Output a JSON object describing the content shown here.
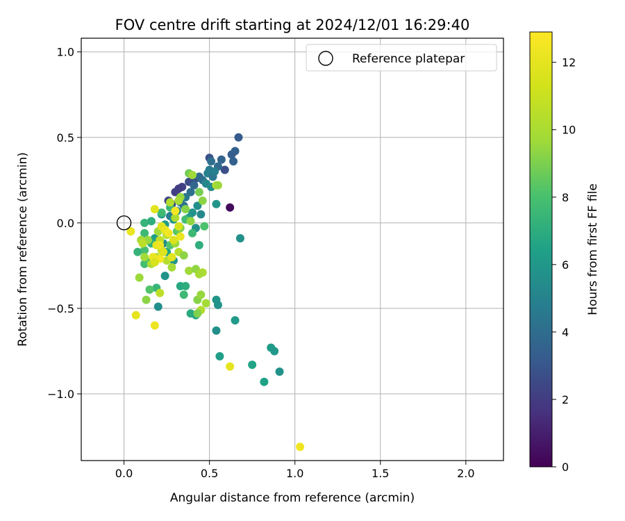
{
  "chart_data": {
    "type": "scatter",
    "title": "FOV centre drift starting at 2024/12/01 16:29:40",
    "xlabel": "Angular distance from reference (arcmin)",
    "ylabel": "Rotation from reference (arcmin)",
    "xlim": [
      -0.25,
      2.22
    ],
    "ylim": [
      -1.39,
      1.08
    ],
    "xticks": [
      0.0,
      0.5,
      1.0,
      1.5,
      2.0
    ],
    "xtick_labels": [
      "0.0",
      "0.5",
      "1.0",
      "1.5",
      "2.0"
    ],
    "yticks": [
      -1.0,
      -0.5,
      0.0,
      0.5,
      1.0
    ],
    "ytick_labels": [
      "−1.0",
      "−0.5",
      "0.0",
      "0.5",
      "1.0"
    ],
    "grid": true,
    "legend": {
      "placement": "upper right",
      "entries": [
        {
          "label": "Reference platepar",
          "marker": "open-circle",
          "x": 0.0,
          "y": 0.0
        }
      ]
    },
    "colorbar": {
      "label": "Hours from first FF file",
      "colormap": "viridis",
      "range": [
        0,
        12.9
      ],
      "ticks": [
        0,
        2,
        4,
        6,
        8,
        10,
        12
      ],
      "tick_labels": [
        "0",
        "2",
        "4",
        "6",
        "8",
        "10",
        "12"
      ]
    },
    "points": [
      {
        "x": 0.62,
        "y": 0.09,
        "h": 0.3
      },
      {
        "x": 0.34,
        "y": 0.21,
        "h": 2.2
      },
      {
        "x": 0.32,
        "y": 0.2,
        "h": 2.0
      },
      {
        "x": 0.38,
        "y": 0.24,
        "h": 2.6
      },
      {
        "x": 0.42,
        "y": 0.26,
        "h": 2.8
      },
      {
        "x": 0.26,
        "y": 0.13,
        "h": 2.3
      },
      {
        "x": 0.28,
        "y": 0.11,
        "h": 2.5
      },
      {
        "x": 0.3,
        "y": 0.18,
        "h": 2.1
      },
      {
        "x": 0.5,
        "y": 0.38,
        "h": 2.8
      },
      {
        "x": 0.59,
        "y": 0.31,
        "h": 2.7
      },
      {
        "x": 0.67,
        "y": 0.5,
        "h": 3.2
      },
      {
        "x": 0.65,
        "y": 0.42,
        "h": 3.4
      },
      {
        "x": 0.64,
        "y": 0.36,
        "h": 3.5
      },
      {
        "x": 0.63,
        "y": 0.4,
        "h": 3.3
      },
      {
        "x": 0.57,
        "y": 0.37,
        "h": 3.6
      },
      {
        "x": 0.55,
        "y": 0.33,
        "h": 3.9
      },
      {
        "x": 0.51,
        "y": 0.36,
        "h": 4.1
      },
      {
        "x": 0.5,
        "y": 0.31,
        "h": 4.6
      },
      {
        "x": 0.49,
        "y": 0.29,
        "h": 4.9
      },
      {
        "x": 0.52,
        "y": 0.27,
        "h": 4.4
      },
      {
        "x": 0.53,
        "y": 0.3,
        "h": 4.8
      },
      {
        "x": 0.46,
        "y": 0.25,
        "h": 4.3
      },
      {
        "x": 0.44,
        "y": 0.27,
        "h": 3.9
      },
      {
        "x": 0.41,
        "y": 0.22,
        "h": 3.7
      },
      {
        "x": 0.39,
        "y": 0.18,
        "h": 4.1
      },
      {
        "x": 0.36,
        "y": 0.15,
        "h": 4.5
      },
      {
        "x": 0.33,
        "y": 0.12,
        "h": 4.6
      },
      {
        "x": 0.35,
        "y": 0.1,
        "h": 4.2
      },
      {
        "x": 0.27,
        "y": 0.04,
        "h": 4.8
      },
      {
        "x": 0.31,
        "y": 0.07,
        "h": 5.1
      },
      {
        "x": 0.48,
        "y": 0.23,
        "h": 5.2
      },
      {
        "x": 0.51,
        "y": 0.21,
        "h": 5.5
      },
      {
        "x": 0.54,
        "y": 0.11,
        "h": 5.9
      },
      {
        "x": 0.43,
        "y": 0.1,
        "h": 5.6
      },
      {
        "x": 0.45,
        "y": 0.05,
        "h": 5.3
      },
      {
        "x": 0.4,
        "y": 0.06,
        "h": 5.8
      },
      {
        "x": 0.38,
        "y": 0.03,
        "h": 6.1
      },
      {
        "x": 0.42,
        "y": -0.03,
        "h": 5.7
      },
      {
        "x": 0.29,
        "y": 0.02,
        "h": 5.9
      },
      {
        "x": 0.24,
        "y": -0.01,
        "h": 6.2
      },
      {
        "x": 0.22,
        "y": 0.05,
        "h": 6.0
      },
      {
        "x": 0.2,
        "y": -0.05,
        "h": 5.6
      },
      {
        "x": 0.18,
        "y": -0.09,
        "h": 6.3
      },
      {
        "x": 0.23,
        "y": -0.12,
        "h": 5.4
      },
      {
        "x": 0.25,
        "y": -0.17,
        "h": 6.5
      },
      {
        "x": 0.29,
        "y": -0.22,
        "h": 5.9
      },
      {
        "x": 0.68,
        "y": -0.09,
        "h": 5.7
      },
      {
        "x": 0.44,
        "y": -0.13,
        "h": 7.1
      },
      {
        "x": 0.24,
        "y": -0.31,
        "h": 5.8
      },
      {
        "x": 0.2,
        "y": -0.49,
        "h": 5.6
      },
      {
        "x": 0.54,
        "y": -0.45,
        "h": 5.9
      },
      {
        "x": 0.55,
        "y": -0.48,
        "h": 5.8
      },
      {
        "x": 0.65,
        "y": -0.57,
        "h": 6.1
      },
      {
        "x": 0.54,
        "y": -0.63,
        "h": 5.6
      },
      {
        "x": 0.56,
        "y": -0.78,
        "h": 6.3
      },
      {
        "x": 0.75,
        "y": -0.83,
        "h": 6.6
      },
      {
        "x": 0.82,
        "y": -0.93,
        "h": 6.5
      },
      {
        "x": 0.86,
        "y": -0.73,
        "h": 6.2
      },
      {
        "x": 0.88,
        "y": -0.75,
        "h": 6.0
      },
      {
        "x": 0.91,
        "y": -0.87,
        "h": 5.8
      },
      {
        "x": 0.33,
        "y": -0.37,
        "h": 6.8
      },
      {
        "x": 0.36,
        "y": -0.37,
        "h": 7.0
      },
      {
        "x": 0.35,
        "y": -0.42,
        "h": 7.6
      },
      {
        "x": 0.39,
        "y": -0.53,
        "h": 6.9
      },
      {
        "x": 0.42,
        "y": -0.54,
        "h": 6.7
      },
      {
        "x": 0.19,
        "y": -0.38,
        "h": 7.4
      },
      {
        "x": 0.15,
        "y": -0.39,
        "h": 8.2
      },
      {
        "x": 0.12,
        "y": -0.24,
        "h": 7.8
      },
      {
        "x": 0.14,
        "y": -0.23,
        "h": 8.0
      },
      {
        "x": 0.12,
        "y": -0.16,
        "h": 7.9
      },
      {
        "x": 0.08,
        "y": -0.17,
        "h": 7.3
      },
      {
        "x": 0.12,
        "y": -0.06,
        "h": 7.6
      },
      {
        "x": 0.16,
        "y": -0.12,
        "h": 7.2
      },
      {
        "x": 0.12,
        "y": 0.0,
        "h": 7.4
      },
      {
        "x": 0.16,
        "y": 0.01,
        "h": 7.1
      },
      {
        "x": 0.22,
        "y": 0.06,
        "h": 7.7
      },
      {
        "x": 0.27,
        "y": 0.09,
        "h": 7.5
      },
      {
        "x": 0.36,
        "y": 0.02,
        "h": 7.8
      },
      {
        "x": 0.4,
        "y": -0.06,
        "h": 7.6
      },
      {
        "x": 0.47,
        "y": -0.02,
        "h": 8.1
      },
      {
        "x": 0.31,
        "y": -0.05,
        "h": 8.4
      },
      {
        "x": 0.27,
        "y": -0.13,
        "h": 8.2
      },
      {
        "x": 0.38,
        "y": 0.29,
        "h": 8.8
      },
      {
        "x": 0.4,
        "y": 0.28,
        "h": 9.7
      },
      {
        "x": 0.44,
        "y": 0.18,
        "h": 8.9
      },
      {
        "x": 0.46,
        "y": 0.13,
        "h": 9.3
      },
      {
        "x": 0.54,
        "y": 0.22,
        "h": 10.4
      },
      {
        "x": 0.55,
        "y": 0.22,
        "h": 9.6
      },
      {
        "x": 0.33,
        "y": 0.15,
        "h": 9.5
      },
      {
        "x": 0.32,
        "y": 0.13,
        "h": 9.9
      },
      {
        "x": 0.27,
        "y": 0.12,
        "h": 10.3
      },
      {
        "x": 0.36,
        "y": 0.08,
        "h": 9.2
      },
      {
        "x": 0.39,
        "y": 0.01,
        "h": 9.4
      },
      {
        "x": 0.3,
        "y": 0.03,
        "h": 10.1
      },
      {
        "x": 0.18,
        "y": 0.08,
        "h": 11.9
      },
      {
        "x": 0.2,
        "y": -0.05,
        "h": 9.8
      },
      {
        "x": 0.14,
        "y": -0.1,
        "h": 9.5
      },
      {
        "x": 0.1,
        "y": -0.1,
        "h": 9.9
      },
      {
        "x": 0.11,
        "y": -0.12,
        "h": 10.5
      },
      {
        "x": 0.12,
        "y": -0.2,
        "h": 9.7
      },
      {
        "x": 0.16,
        "y": -0.24,
        "h": 10.2
      },
      {
        "x": 0.19,
        "y": -0.2,
        "h": 10.0
      },
      {
        "x": 0.22,
        "y": -0.16,
        "h": 10.8
      },
      {
        "x": 0.21,
        "y": -0.1,
        "h": 10.6
      },
      {
        "x": 0.25,
        "y": -0.07,
        "h": 10.1
      },
      {
        "x": 0.3,
        "y": -0.12,
        "h": 9.6
      },
      {
        "x": 0.32,
        "y": -0.17,
        "h": 10.4
      },
      {
        "x": 0.35,
        "y": -0.19,
        "h": 9.3
      },
      {
        "x": 0.33,
        "y": -0.03,
        "h": 9.1
      },
      {
        "x": 0.28,
        "y": -0.26,
        "h": 9.8
      },
      {
        "x": 0.25,
        "y": -0.22,
        "h": 10.3
      },
      {
        "x": 0.09,
        "y": -0.32,
        "h": 9.6
      },
      {
        "x": 0.13,
        "y": -0.45,
        "h": 9.3
      },
      {
        "x": 0.21,
        "y": -0.41,
        "h": 10.6
      },
      {
        "x": 0.38,
        "y": -0.28,
        "h": 9.7
      },
      {
        "x": 0.42,
        "y": -0.27,
        "h": 9.4
      },
      {
        "x": 0.46,
        "y": -0.29,
        "h": 10.1
      },
      {
        "x": 0.44,
        "y": -0.3,
        "h": 9.9
      },
      {
        "x": 0.43,
        "y": -0.45,
        "h": 9.2
      },
      {
        "x": 0.45,
        "y": -0.42,
        "h": 9.5
      },
      {
        "x": 0.48,
        "y": -0.47,
        "h": 9.8
      },
      {
        "x": 0.45,
        "y": -0.51,
        "h": 10.2
      },
      {
        "x": 0.43,
        "y": -0.53,
        "h": 9.1
      },
      {
        "x": 0.04,
        "y": -0.05,
        "h": 12.2
      },
      {
        "x": 0.07,
        "y": -0.54,
        "h": 12.0
      },
      {
        "x": 0.18,
        "y": -0.6,
        "h": 12.3
      },
      {
        "x": 0.62,
        "y": -0.84,
        "h": 12.0
      },
      {
        "x": 1.03,
        "y": -1.31,
        "h": 12.4
      },
      {
        "x": 0.19,
        "y": -0.13,
        "h": 12.0
      },
      {
        "x": 0.21,
        "y": -0.13,
        "h": 12.4
      },
      {
        "x": 0.22,
        "y": -0.02,
        "h": 11.8
      },
      {
        "x": 0.24,
        "y": -0.04,
        "h": 12.1
      },
      {
        "x": 0.26,
        "y": -0.06,
        "h": 12.5
      },
      {
        "x": 0.29,
        "y": -0.1,
        "h": 11.6
      },
      {
        "x": 0.3,
        "y": 0.07,
        "h": 12.6
      },
      {
        "x": 0.32,
        "y": -0.02,
        "h": 11.4
      },
      {
        "x": 0.33,
        "y": -0.08,
        "h": 12.2
      },
      {
        "x": 0.17,
        "y": -0.2,
        "h": 12.2
      },
      {
        "x": 0.21,
        "y": -0.21,
        "h": 12.6
      },
      {
        "x": 0.23,
        "y": -0.17,
        "h": 11.7
      },
      {
        "x": 0.18,
        "y": -0.23,
        "h": 11.5
      },
      {
        "x": 0.28,
        "y": -0.2,
        "h": 11.9
      }
    ]
  }
}
